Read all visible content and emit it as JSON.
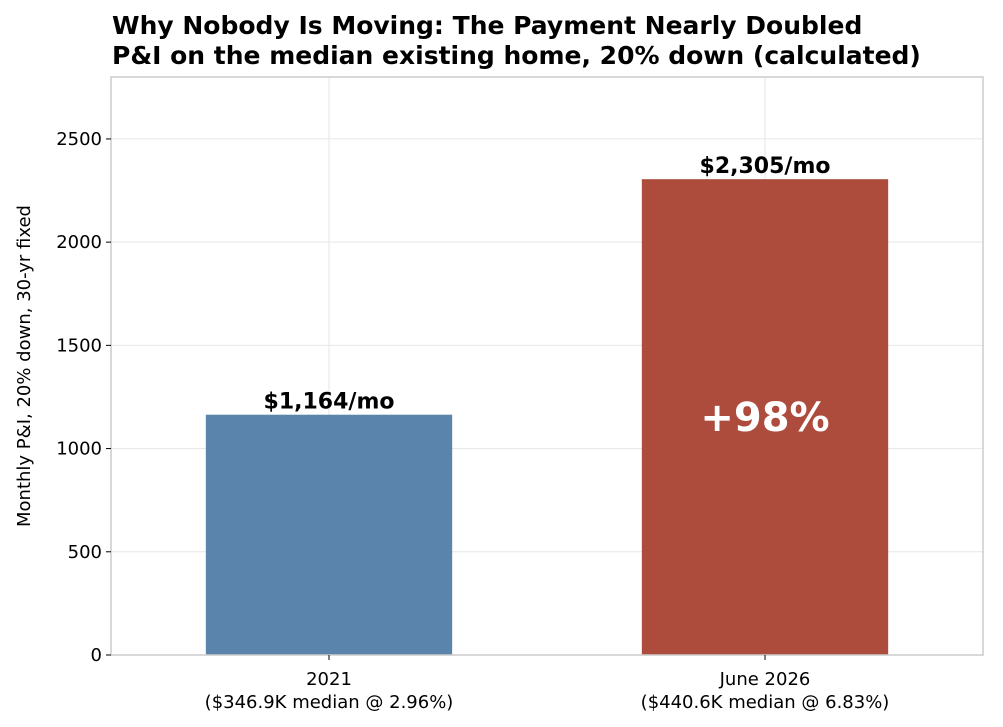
{
  "chart_data": {
    "type": "bar",
    "title_lines": [
      "Why Nobody Is Moving: The Payment Nearly Doubled",
      "P&I on the median existing home, 20% down (calculated)"
    ],
    "ylabel": "Monthly P&I, 20% down, 30-yr fixed",
    "xlabel": "",
    "ylim": [
      0,
      2800
    ],
    "yticks": [
      0,
      500,
      1000,
      1500,
      2000,
      2500
    ],
    "grid": true,
    "categories": [
      [
        "2021",
        "($346.9K median @ 2.96%)"
      ],
      [
        "June 2026",
        "($440.6K median @ 6.83%)"
      ]
    ],
    "values": [
      1164,
      2305
    ],
    "data_labels": [
      "$1,164/mo",
      "$2,305/mo"
    ],
    "colors": [
      "#5b84ad",
      "#ad4b3c"
    ],
    "annotation": {
      "text": "+98%",
      "bar_index": 1
    }
  }
}
